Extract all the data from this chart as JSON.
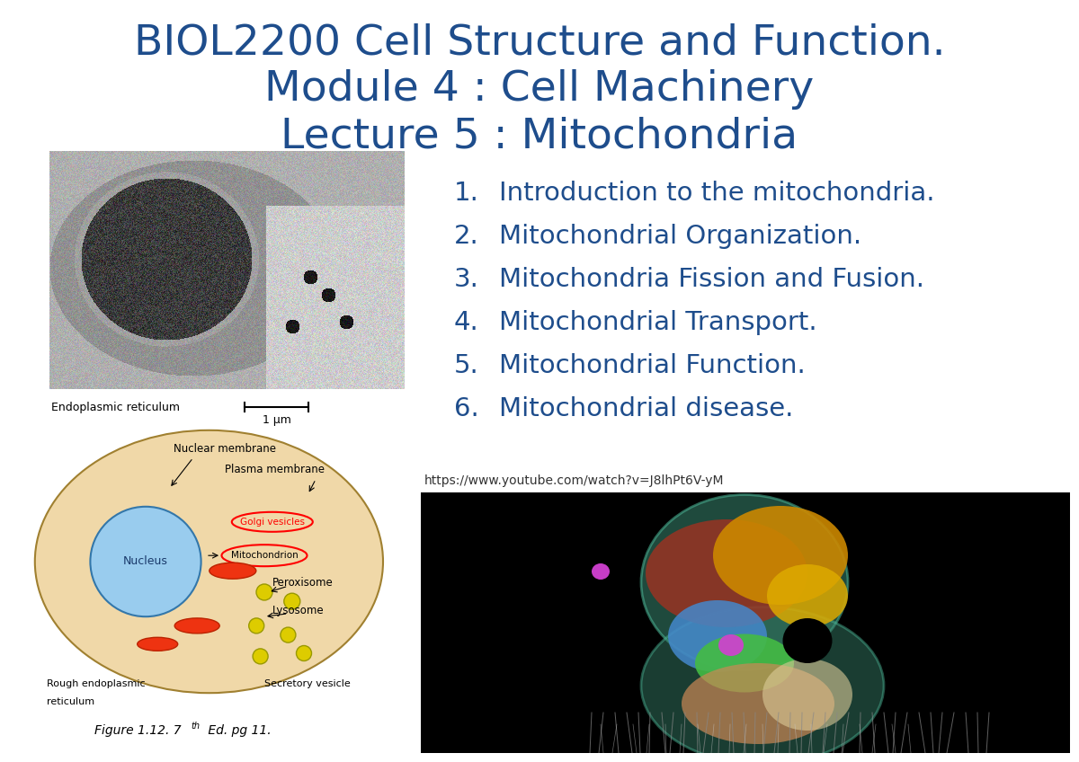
{
  "title_line1": "BIOL2200 Cell Structure and Function.",
  "title_line2": "Module 4 : Cell Machinery",
  "title_line3": "Lecture 5 : Mitochondria",
  "title_color": "#1e4d8c",
  "title_fontsize": 34,
  "bg_color": "#ffffff",
  "list_items": [
    "Introduction to the mitochondria.",
    "Mitochondrial Organization.",
    "Mitochondria Fission and Fusion.",
    "Mitochondrial Transport.",
    "Mitochondrial Function.",
    "Mitochondrial disease."
  ],
  "list_color": "#1e4d8c",
  "list_fontsize": 21,
  "url_text": "https://www.youtube.com/watch?v=J8lhPt6V-yM",
  "url_fontsize": 10,
  "caption_text": "Figure 1.12. 7",
  "caption_sup": "th",
  "caption_rest": " Ed. pg 11.",
  "caption_fontsize": 11,
  "em_label": "Endoplasmic reticulum",
  "scale_label": "1 μm"
}
